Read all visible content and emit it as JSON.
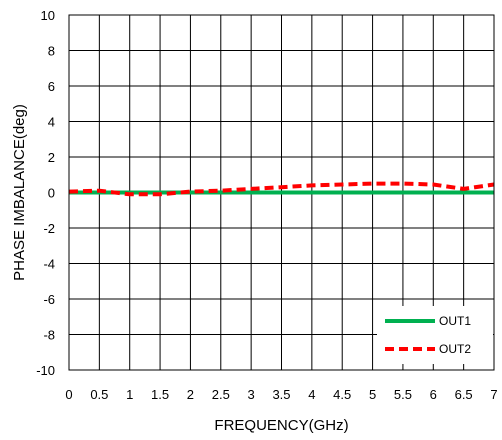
{
  "chart_data": {
    "type": "line",
    "title": "",
    "xlabel": "FREQUENCY(GHz)",
    "ylabel": "PHASE IMBALANCE(deg)",
    "xlim": [
      0,
      7
    ],
    "ylim": [
      -10,
      10
    ],
    "x_ticks": [
      "0",
      "0.5",
      "1",
      "1.5",
      "2",
      "2.5",
      "3",
      "3.5",
      "4",
      "4.5",
      "5",
      "5.5",
      "6",
      "6.5",
      "7"
    ],
    "y_ticks": [
      "10",
      "8",
      "6",
      "4",
      "2",
      "0",
      "-2",
      "-4",
      "-6",
      "-8",
      "-10"
    ],
    "grid": true,
    "legend_position": "bottom-right",
    "series": [
      {
        "name": "OUT1",
        "color": "#00b050",
        "style": "solid",
        "x": [
          0,
          0.5,
          1,
          1.5,
          2,
          2.5,
          3,
          3.5,
          4,
          4.5,
          5,
          5.5,
          6,
          6.5,
          7
        ],
        "y": [
          0,
          0,
          0,
          0,
          0,
          0,
          0,
          0,
          0,
          0,
          0,
          0,
          0,
          0,
          0
        ]
      },
      {
        "name": "OUT2",
        "color": "#ff0000",
        "style": "dashed",
        "x": [
          0,
          0.5,
          1,
          1.5,
          2,
          2.5,
          3,
          3.5,
          4,
          4.5,
          5,
          5.5,
          6,
          6.5,
          7
        ],
        "y": [
          0.05,
          0.1,
          -0.1,
          -0.1,
          0.05,
          0.1,
          0.2,
          0.3,
          0.4,
          0.45,
          0.5,
          0.5,
          0.45,
          0.2,
          0.45
        ]
      }
    ]
  }
}
